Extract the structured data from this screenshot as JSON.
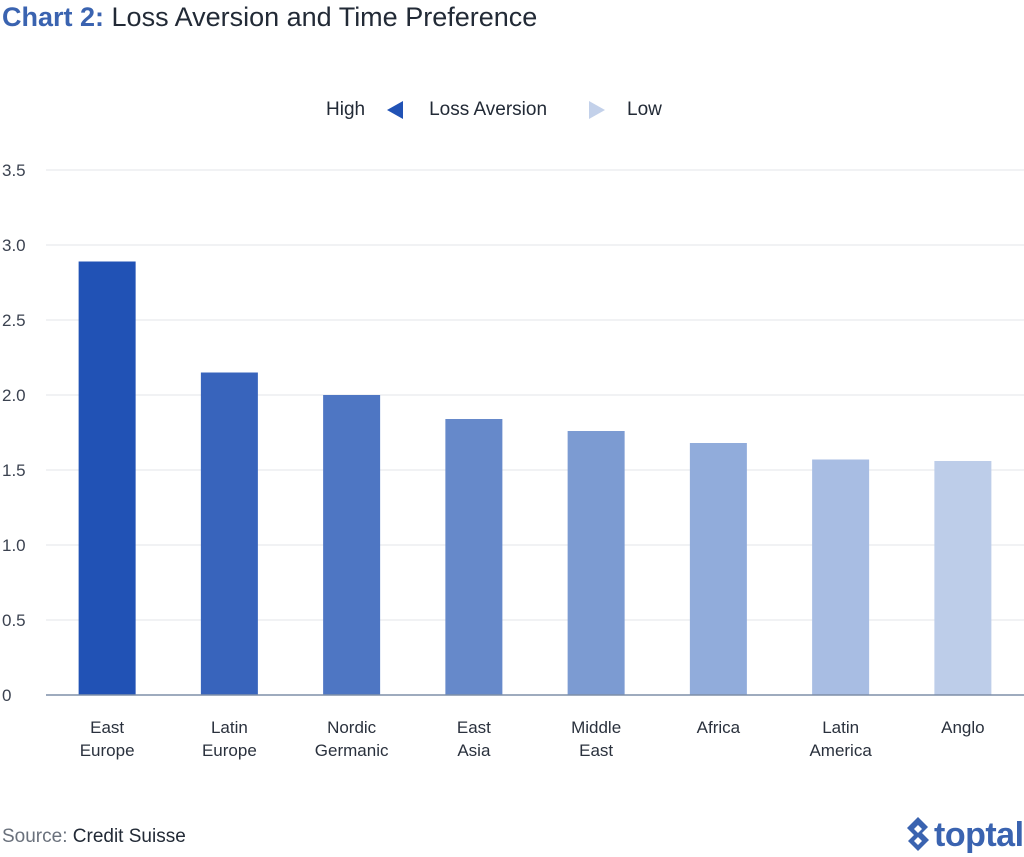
{
  "header": {
    "title_prefix": "Chart 2:",
    "title": "Loss Aversion and Time Preference"
  },
  "legend": {
    "high_label": "High",
    "center_label": "Loss Aversion",
    "low_label": "Low",
    "high_color": "#2152b5",
    "low_color": "#c3d1ea"
  },
  "chart_data": {
    "type": "bar",
    "categories": [
      [
        "East",
        "Europe"
      ],
      [
        "Latin",
        "Europe"
      ],
      [
        "Nordic",
        "Germanic"
      ],
      [
        "East",
        "Asia"
      ],
      [
        "Middle",
        "East"
      ],
      [
        "Africa"
      ],
      [
        "Latin",
        "America"
      ],
      [
        "Anglo"
      ]
    ],
    "values": [
      2.89,
      2.15,
      2.0,
      1.84,
      1.76,
      1.68,
      1.57,
      1.56
    ],
    "colors": [
      "#2152b5",
      "#3864bc",
      "#4e76c3",
      "#6689ca",
      "#7c9bd2",
      "#91acdb",
      "#a8bde3",
      "#bdcde9"
    ],
    "yticks": [
      "0",
      "0.5",
      "1.0",
      "1.5",
      "2.0",
      "2.5",
      "3.0",
      "3.5"
    ],
    "ylim": [
      0,
      3.5
    ],
    "grid": true,
    "legend_position": "top-center"
  },
  "footer": {
    "source_label": "Source:",
    "source_value": "Credit Suisse",
    "logo_text": "toptal",
    "logo_icon": "toptal-diamond-icon"
  }
}
